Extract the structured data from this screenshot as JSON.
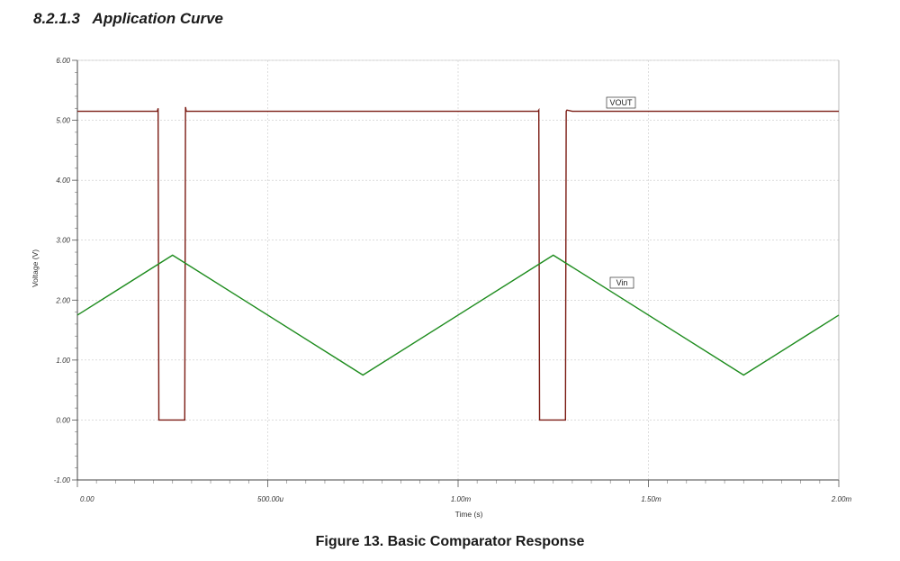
{
  "section": {
    "number": "8.2.1.3",
    "title": "Application Curve"
  },
  "figure": {
    "caption": "Figure 13.  Basic Comparator Response"
  },
  "chart_data": {
    "type": "line",
    "xlabel": "Time (s)",
    "ylabel": "Voltage (V)",
    "xlim": [
      0,
      0.002
    ],
    "ylim": [
      -1.0,
      6.0
    ],
    "x_ticks": [
      0,
      0.0005,
      0.001,
      0.0015,
      0.002
    ],
    "x_tick_labels": [
      "0.00",
      "500.00u",
      "1.00m",
      "1.50m",
      "2.00m"
    ],
    "y_ticks": [
      -1,
      0,
      1,
      2,
      3,
      4,
      5,
      6
    ],
    "y_tick_labels": [
      "-1.00",
      "0.00",
      "1.00",
      "2.00",
      "3.00",
      "4.00",
      "5.00",
      "6.00"
    ],
    "grid": true,
    "series": [
      {
        "name": "VOUT",
        "color": "#7a1a12",
        "x": [
          0,
          0.00021,
          0.000212,
          0.000214,
          0.000282,
          0.000284,
          0.000286,
          0.0003,
          0.00121,
          0.001212,
          0.001214,
          0.001282,
          0.001284,
          0.001286,
          0.0013,
          0.002
        ],
        "y": [
          5.15,
          5.15,
          5.2,
          0.0,
          0.0,
          5.22,
          5.15,
          5.15,
          5.15,
          5.17,
          0.0,
          0.0,
          5.15,
          5.17,
          5.15,
          5.15
        ]
      },
      {
        "name": "Vin",
        "color": "#1e8c1e",
        "x": [
          0,
          0.00025,
          0.00075,
          0.00125,
          0.00175,
          0.002
        ],
        "y": [
          1.75,
          2.75,
          0.75,
          2.75,
          0.75,
          1.75
        ]
      }
    ]
  }
}
